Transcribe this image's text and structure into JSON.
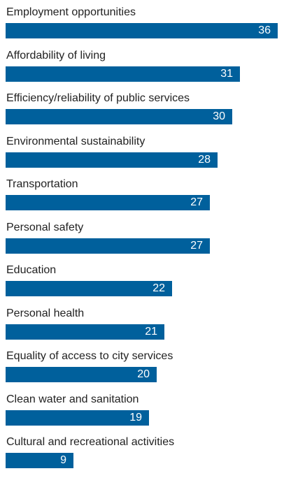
{
  "chart_data": {
    "type": "bar",
    "orientation": "horizontal",
    "categories": [
      "Employment opportunities",
      "Affordability of living",
      "Efficiency/reliability of public services",
      "Environmental sustainability",
      "Transportation",
      "Personal safety",
      "Education",
      "Personal health",
      "Equality of access to city services",
      "Clean water and sanitation",
      "Cultural and recreational activities"
    ],
    "values": [
      36,
      31,
      30,
      28,
      27,
      27,
      22,
      21,
      20,
      19,
      9
    ],
    "title": "",
    "xlabel": "",
    "ylabel": "",
    "xlim": [
      0,
      36
    ],
    "grid": false,
    "legend": "none",
    "bar_color": "#00609c",
    "value_label_color": "#ffffff"
  }
}
